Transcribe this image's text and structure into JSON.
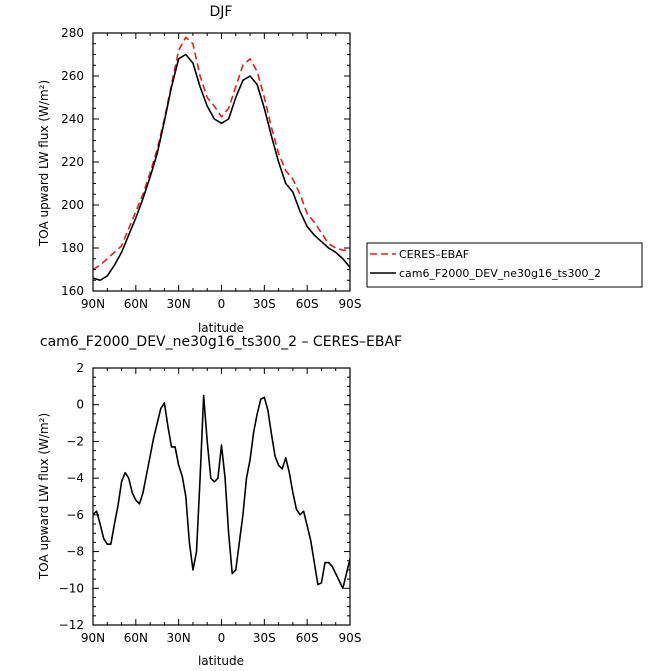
{
  "chart_data": [
    {
      "type": "line",
      "title": "DJF",
      "xlabel": "latitude",
      "ylabel": "TOA upward LW flux (W/m²)",
      "xlim": [
        90,
        -90
      ],
      "ylim": [
        160,
        280
      ],
      "x_ticks": [
        90,
        60,
        30,
        0,
        -30,
        -60,
        -90
      ],
      "x_tick_labels": [
        "90N",
        "60N",
        "30N",
        "0",
        "30S",
        "60S",
        "90S"
      ],
      "y_ticks": [
        160,
        180,
        200,
        220,
        240,
        260,
        280
      ],
      "y_tick_labels": [
        "160",
        "180",
        "200",
        "220",
        "240",
        "260",
        "280"
      ],
      "legend_position": "right",
      "grid": false,
      "series": [
        {
          "name": "CERES–EBAF",
          "color": "#e02020",
          "dash": "dashed",
          "x": [
            90,
            85,
            80,
            75,
            70,
            65,
            60,
            55,
            50,
            45,
            40,
            35,
            30,
            25,
            20,
            15,
            10,
            5,
            0,
            -5,
            -10,
            -15,
            -20,
            -25,
            -30,
            -35,
            -40,
            -45,
            -50,
            -55,
            -60,
            -65,
            -70,
            -75,
            -80,
            -85,
            -90
          ],
          "values": [
            170,
            172,
            175,
            178,
            181,
            189,
            197,
            205,
            215,
            226,
            240,
            256,
            272,
            278,
            275,
            260,
            250,
            246,
            241,
            245,
            255,
            265,
            268,
            262,
            250,
            236,
            224,
            216,
            212,
            205,
            196,
            192,
            187,
            182,
            180,
            179,
            179
          ]
        },
        {
          "name": "cam6_F2000_DEV_ne30g16_ts300_2",
          "color": "#000000",
          "dash": "solid",
          "x": [
            90,
            85,
            80,
            75,
            70,
            65,
            60,
            55,
            50,
            45,
            40,
            35,
            30,
            25,
            20,
            15,
            10,
            5,
            0,
            -5,
            -10,
            -15,
            -20,
            -25,
            -30,
            -35,
            -40,
            -45,
            -50,
            -55,
            -60,
            -65,
            -70,
            -75,
            -80,
            -85,
            -90
          ],
          "values": [
            166,
            165,
            167,
            172,
            178,
            186,
            194,
            203,
            213,
            224,
            239,
            255,
            268,
            270,
            266,
            255,
            246,
            240,
            238,
            240,
            250,
            258,
            260,
            256,
            245,
            232,
            220,
            210,
            206,
            197,
            190,
            186,
            183,
            180,
            178,
            175,
            171
          ]
        }
      ]
    },
    {
      "type": "line",
      "title": "cam6_F2000_DEV_ne30g16_ts300_2 – CERES–EBAF",
      "xlabel": "latitude",
      "ylabel": "TOA upward LW flux (W/m²)",
      "xlim": [
        90,
        -90
      ],
      "ylim": [
        -12,
        2
      ],
      "x_ticks": [
        90,
        60,
        30,
        0,
        -30,
        -60,
        -90
      ],
      "x_tick_labels": [
        "90N",
        "60N",
        "30N",
        "0",
        "30S",
        "60S",
        "90S"
      ],
      "y_ticks": [
        -12,
        -10,
        -8,
        -6,
        -4,
        -2,
        0,
        2
      ],
      "y_tick_labels": [
        "−12",
        "−10",
        "−8",
        "−6",
        "−4",
        "−2",
        "0",
        "2"
      ],
      "grid": false,
      "series": [
        {
          "color": "#000000",
          "dash": "solid",
          "x": [
            90,
            87.5,
            85,
            82.5,
            80,
            77.5,
            75,
            72.5,
            70,
            67.5,
            65,
            62.5,
            60,
            57.5,
            55,
            52.5,
            50,
            47.5,
            45,
            42.5,
            40,
            37.5,
            35,
            32.5,
            30,
            27.5,
            25,
            22.5,
            20,
            17.5,
            15,
            12.5,
            10,
            7.5,
            5,
            2.5,
            0,
            -2.5,
            -5,
            -7.5,
            -10,
            -12.5,
            -15,
            -17.5,
            -20,
            -22.5,
            -25,
            -27.5,
            -30,
            -32.5,
            -35,
            -37.5,
            -40,
            -42.5,
            -45,
            -47.5,
            -50,
            -52.5,
            -55,
            -57.5,
            -60,
            -62.5,
            -65,
            -67.5,
            -70,
            -72.5,
            -75,
            -77.5,
            -80,
            -82.5,
            -85,
            -87.5,
            -90
          ],
          "values": [
            -6.0,
            -5.8,
            -6.5,
            -7.3,
            -7.6,
            -7.6,
            -6.5,
            -5.5,
            -4.2,
            -3.7,
            -4.0,
            -4.8,
            -5.2,
            -5.4,
            -4.8,
            -3.8,
            -2.8,
            -1.8,
            -1.0,
            -0.2,
            0.1,
            -1.2,
            -2.3,
            -2.3,
            -3.3,
            -3.9,
            -5.0,
            -7.5,
            -9.0,
            -8.0,
            -4.0,
            0.5,
            -2.0,
            -4.0,
            -4.2,
            -4.0,
            -2.2,
            -4.0,
            -7.0,
            -9.2,
            -9.0,
            -7.5,
            -6.0,
            -4.0,
            -3.0,
            -1.5,
            -0.5,
            0.3,
            0.4,
            -0.3,
            -1.6,
            -2.8,
            -3.3,
            -3.5,
            -2.9,
            -3.7,
            -4.8,
            -5.7,
            -6.0,
            -5.8,
            -6.6,
            -7.4,
            -8.6,
            -9.8,
            -9.7,
            -8.6,
            -8.6,
            -8.8,
            -9.2,
            -9.6,
            -10.0,
            -9.2,
            -8.4
          ]
        }
      ]
    }
  ]
}
